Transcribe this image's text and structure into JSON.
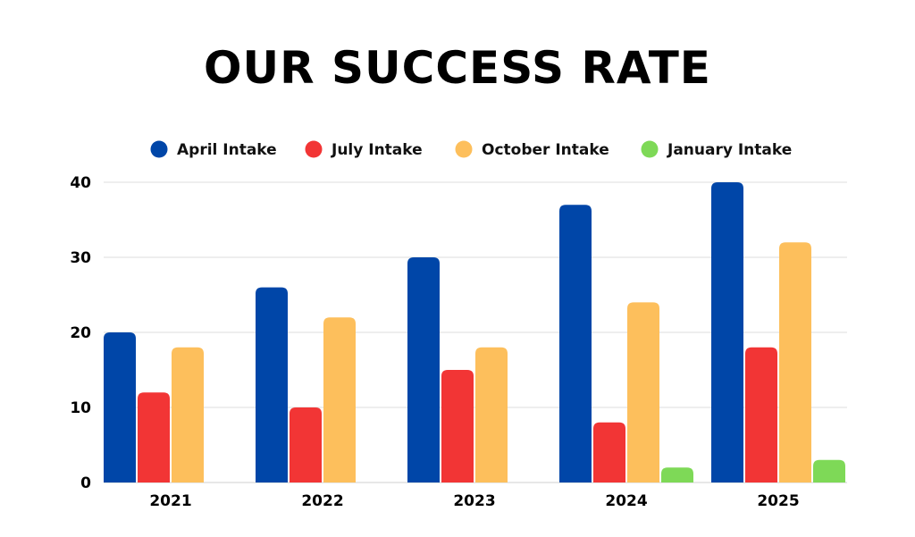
{
  "title": "OUR SUCCESS RATE",
  "chart_data": {
    "type": "bar",
    "title": "OUR SUCCESS RATE",
    "categories": [
      "2021",
      "2022",
      "2023",
      "2024",
      "2025"
    ],
    "series": [
      {
        "name": "April Intake",
        "color": "#0046a8",
        "values": [
          20,
          26,
          30,
          37,
          40
        ]
      },
      {
        "name": "July Intake",
        "color": "#f23535",
        "values": [
          12,
          10,
          15,
          8,
          18
        ]
      },
      {
        "name": "October Intake",
        "color": "#fdbf5c",
        "values": [
          18,
          22,
          18,
          24,
          32
        ]
      },
      {
        "name": "January Intake",
        "color": "#7ed957",
        "values": [
          0,
          0,
          0,
          2,
          3
        ]
      }
    ],
    "yticks": [
      "0",
      "10",
      "20",
      "30",
      "40"
    ],
    "ylim": [
      0,
      40
    ],
    "xlabel": "",
    "ylabel": "",
    "grid": true,
    "legend_position": "top"
  }
}
